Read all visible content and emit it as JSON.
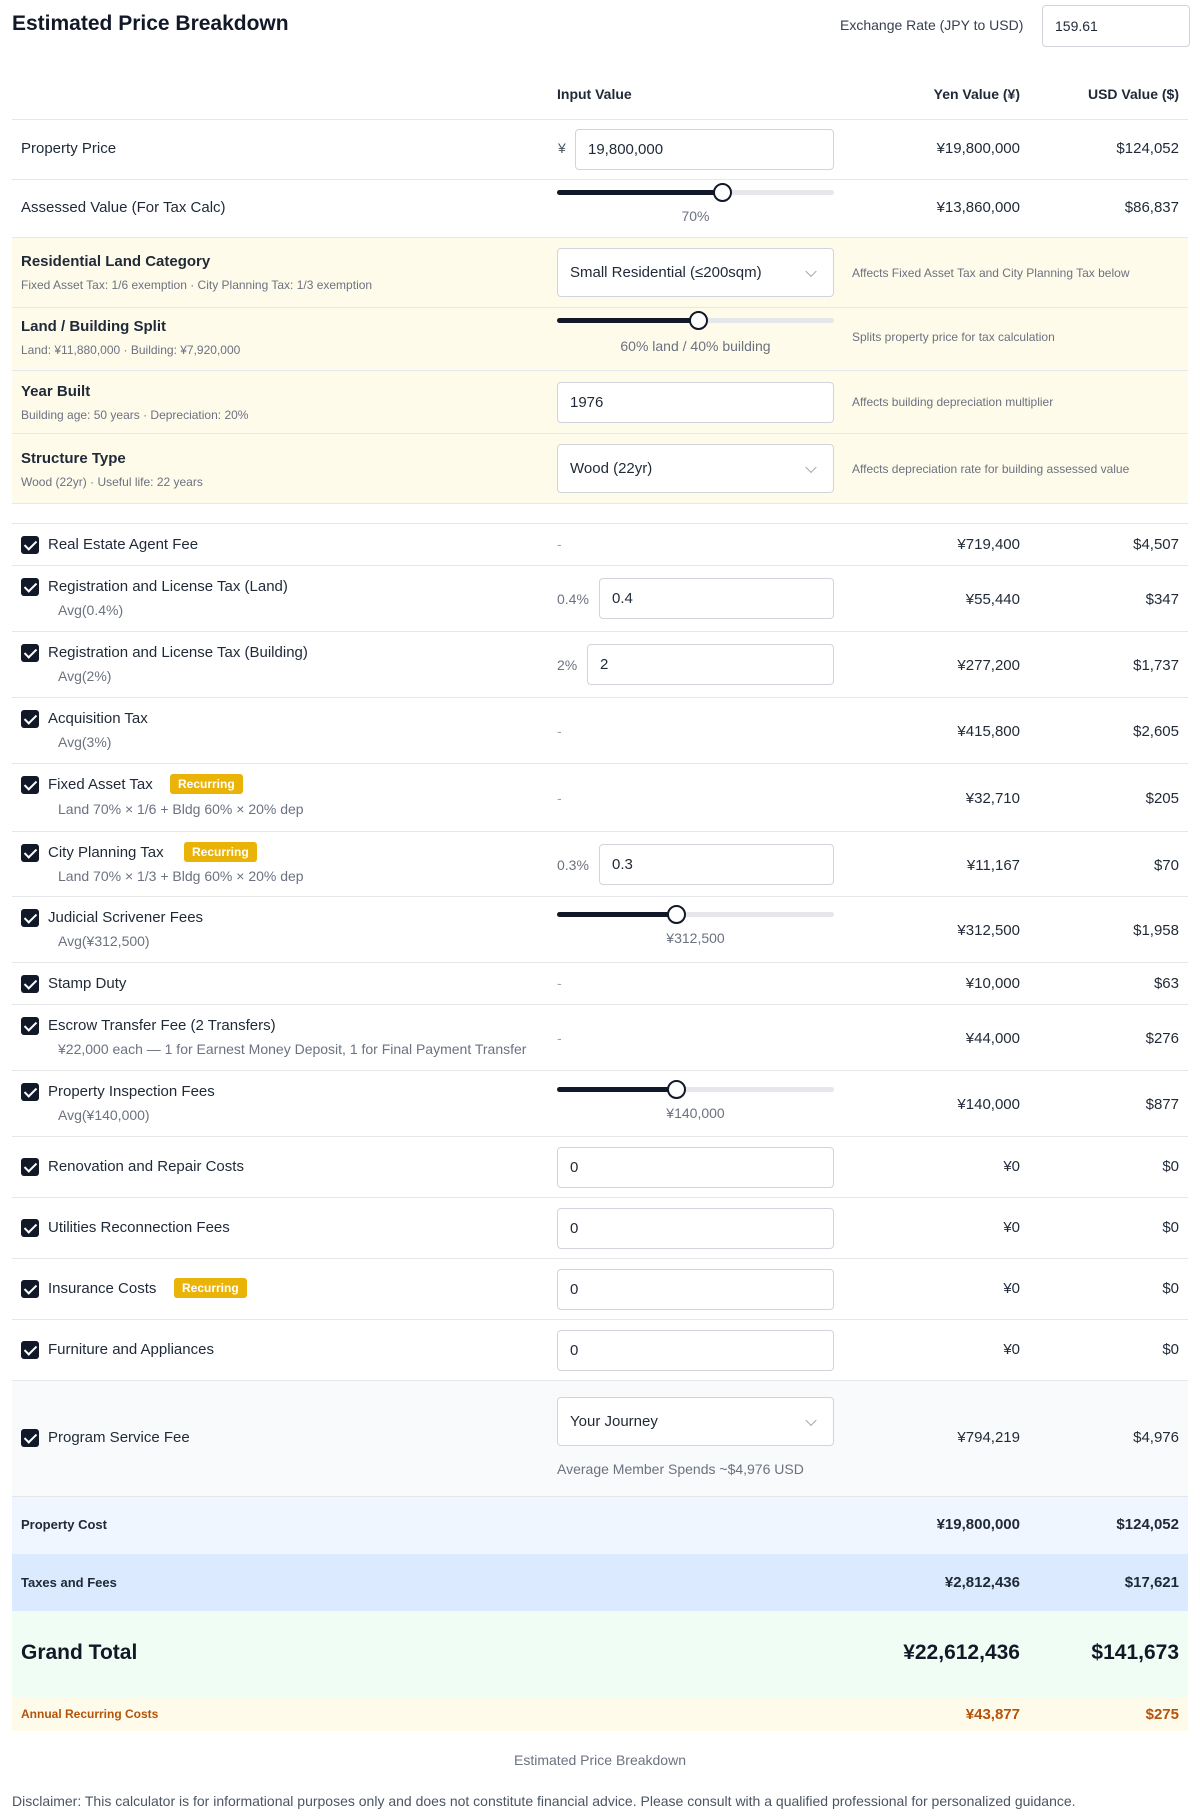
{
  "header": {
    "title": "Estimated Price Breakdown",
    "exchange_label": "Exchange Rate (JPY to USD)",
    "exchange_value": "159.61"
  },
  "columns": {
    "input": "Input Value",
    "yen": "Yen Value (¥)",
    "usd": "USD Value ($)"
  },
  "property_price": {
    "label": "Property Price",
    "prefix": "¥",
    "value": "19,800,000",
    "yen": "¥19,800,000",
    "usd": "$124,052"
  },
  "assessed": {
    "label": "Assessed Value (For Tax Calc)",
    "slider_label": "70%",
    "slider_level": 0.7,
    "yen": "¥13,860,000",
    "usd": "$86,837"
  },
  "land_category": {
    "label": "Residential Land Category",
    "sub": "Fixed Asset Tax: 1/6 exemption · City Planning Tax: 1/3 exemption",
    "value": "Small Residential (≤200sqm)",
    "note": "Affects Fixed Asset Tax and City Planning Tax below"
  },
  "land_split": {
    "label": "Land / Building Split",
    "sub": "Land: ¥11,880,000 · Building: ¥7,920,000",
    "slider_label": "60% land / 40% building",
    "slider_level": 0.6,
    "note": "Splits property price for tax calculation"
  },
  "year_built": {
    "label": "Year Built",
    "sub": "Building age: 50 years · Depreciation: 20%",
    "value": "1976",
    "note": "Affects building depreciation multiplier"
  },
  "structure": {
    "label": "Structure Type",
    "sub": "Wood (22yr) · Useful life: 22 years",
    "value": "Wood (22yr)",
    "note": "Affects depreciation rate for building assessed value"
  },
  "fees": {
    "agent": {
      "label": "Real Estate Agent Fee",
      "input": "-",
      "yen": "¥719,400",
      "usd": "$4,507"
    },
    "reg_land": {
      "label": "Registration and License Tax (Land)",
      "sub": "Avg(0.4%)",
      "pct": "0.4%",
      "value": "0.4",
      "yen": "¥55,440",
      "usd": "$347"
    },
    "reg_bldg": {
      "label": "Registration and License Tax (Building)",
      "sub": "Avg(2%)",
      "pct": "2%",
      "value": "2",
      "yen": "¥277,200",
      "usd": "$1,737"
    },
    "acq": {
      "label": "Acquisition Tax",
      "sub": "Avg(3%)",
      "input": "-",
      "yen": "¥415,800",
      "usd": "$2,605"
    },
    "fixed_asset": {
      "label": "Fixed Asset Tax",
      "badge": "Recurring",
      "sub": "Land 70% × 1/6 + Bldg 60% × 20% dep",
      "input": "-",
      "yen": "¥32,710",
      "usd": "$205"
    },
    "city_planning": {
      "label": "City Planning Tax",
      "badge": "Recurring",
      "sub": "Land 70% × 1/3 + Bldg 60% × 20% dep",
      "pct": "0.3%",
      "value": "0.3",
      "yen": "¥11,167",
      "usd": "$70"
    },
    "scrivener": {
      "label": "Judicial Scrivener Fees",
      "sub": "Avg(¥312,500)",
      "slider_label": "¥312,500",
      "slider_level": 0.5,
      "yen": "¥312,500",
      "usd": "$1,958"
    },
    "stamp": {
      "label": "Stamp Duty",
      "input": "-",
      "yen": "¥10,000",
      "usd": "$63"
    },
    "escrow": {
      "label": "Escrow Transfer Fee (2 Transfers)",
      "sub": "¥22,000 each — 1 for Earnest Money Deposit, 1 for Final Payment Transfer",
      "input": "-",
      "yen": "¥44,000",
      "usd": "$276"
    },
    "inspection": {
      "label": "Property Inspection Fees",
      "sub": "Avg(¥140,000)",
      "slider_label": "¥140,000",
      "slider_level": 0.5,
      "yen": "¥140,000",
      "usd": "$877"
    },
    "renovation": {
      "label": "Renovation and Repair Costs",
      "value": "0",
      "yen": "¥0",
      "usd": "$0"
    },
    "utilities": {
      "label": "Utilities Reconnection Fees",
      "value": "0",
      "yen": "¥0",
      "usd": "$0"
    },
    "insurance": {
      "label": "Insurance Costs",
      "badge": "Recurring",
      "value": "0",
      "yen": "¥0",
      "usd": "$0"
    },
    "furniture": {
      "label": "Furniture and Appliances",
      "value": "0",
      "yen": "¥0",
      "usd": "$0"
    },
    "program": {
      "label": "Program Service Fee",
      "value": "Your Journey",
      "note": "Average Member Spends ~$4,976 USD",
      "yen": "¥794,219",
      "usd": "$4,976"
    }
  },
  "totals": {
    "property": {
      "label": "Property Cost",
      "yen": "¥19,800,000",
      "usd": "$124,052"
    },
    "taxes": {
      "label": "Taxes and Fees",
      "yen": "¥2,812,436",
      "usd": "$17,621"
    },
    "grand": {
      "label": "Grand Total",
      "yen": "¥22,612,436",
      "usd": "$141,673"
    },
    "annual": {
      "label": "Annual Recurring Costs",
      "yen": "¥43,877",
      "usd": "$275"
    }
  },
  "footer": {
    "caption": "Estimated Price Breakdown",
    "disclaimer": "Disclaimer: This calculator is for informational purposes only and does not constitute financial advice. Please consult with a qualified professional for personalized guidance."
  },
  "colors": {
    "accent": "#111827",
    "badge": "#eab308",
    "cream": "#fffbeb",
    "blue_light": "#eff6ff",
    "blue": "#dbeafe",
    "green": "#f0fdf4",
    "annual": "#b45309"
  }
}
